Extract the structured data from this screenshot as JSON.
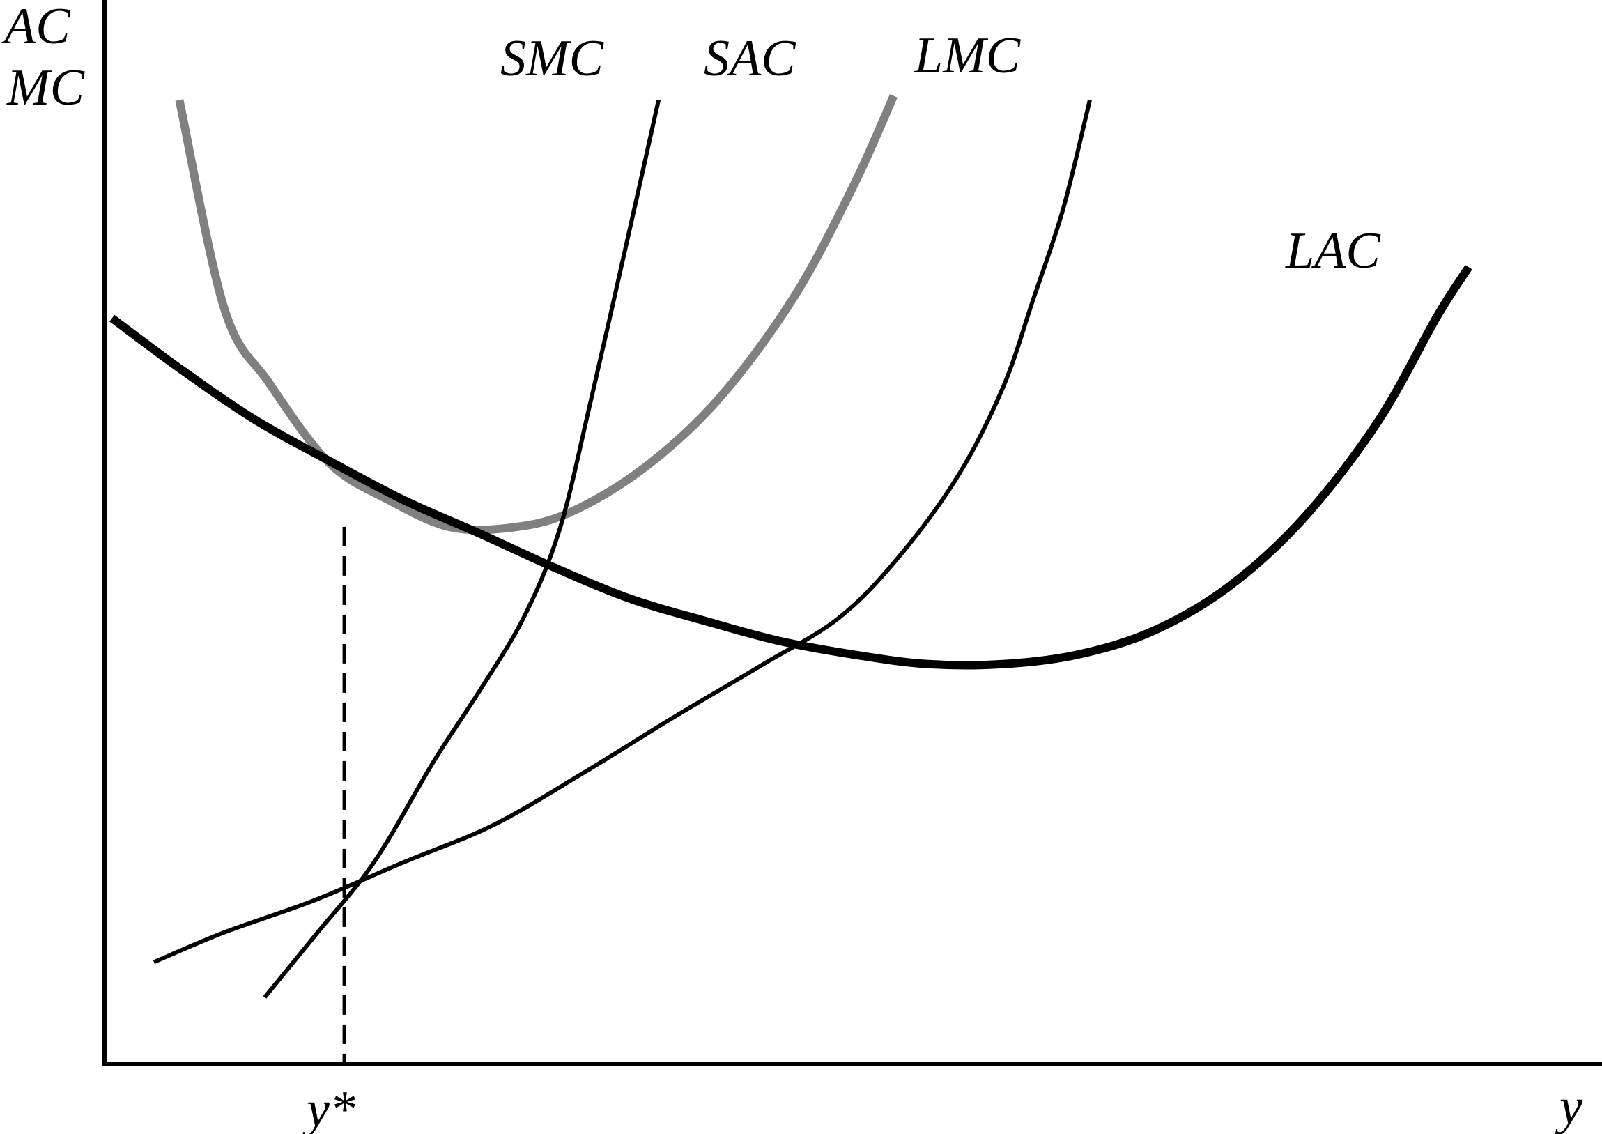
{
  "chart_data": {
    "type": "line",
    "title": "",
    "xlabel": "y",
    "ylabel_lines": [
      "AC",
      "MC"
    ],
    "x_tick_label": "y*",
    "xlim": [
      0,
      100
    ],
    "ylim": [
      0,
      100
    ],
    "grid": false,
    "legend": "none",
    "series": [
      {
        "name": "SAC",
        "color": "#808080",
        "points": [
          [
            5,
            90.6
          ],
          [
            8,
            71
          ],
          [
            11,
            64
          ],
          [
            15,
            56.5
          ],
          [
            19,
            53
          ],
          [
            23,
            50.5
          ],
          [
            27,
            50.4
          ],
          [
            31,
            51.8
          ],
          [
            36,
            56
          ],
          [
            41,
            62.5
          ],
          [
            46,
            72
          ],
          [
            50,
            82.5
          ],
          [
            52.7,
            91
          ]
        ]
      },
      {
        "name": "SMC",
        "color": "#000000",
        "points": [
          [
            10.7,
            6.3
          ],
          [
            14,
            12
          ],
          [
            18,
            19
          ],
          [
            22,
            28.5
          ],
          [
            25,
            35
          ],
          [
            28,
            42
          ],
          [
            30.4,
            50.3
          ],
          [
            32.5,
            62.5
          ],
          [
            35,
            78
          ],
          [
            37,
            90.6
          ]
        ]
      },
      {
        "name": "LMC",
        "color": "#000000",
        "points": [
          [
            3.3,
            9.6
          ],
          [
            8,
            12.4
          ],
          [
            14,
            15.4
          ],
          [
            20,
            19
          ],
          [
            26,
            22.5
          ],
          [
            32,
            27.4
          ],
          [
            38,
            32.6
          ],
          [
            44,
            37.6
          ],
          [
            49,
            41.9
          ],
          [
            53,
            47.6
          ],
          [
            57,
            55.3
          ],
          [
            60,
            63.6
          ],
          [
            62,
            71.8
          ],
          [
            64,
            80.3
          ],
          [
            65.8,
            90.6
          ]
        ]
      },
      {
        "name": "LAC",
        "color": "#000000",
        "points": [
          [
            0.5,
            70.1
          ],
          [
            5,
            65.4
          ],
          [
            10,
            60.6
          ],
          [
            15,
            56.7
          ],
          [
            20,
            53
          ],
          [
            25,
            49.9
          ],
          [
            30,
            46.7
          ],
          [
            35,
            43.8
          ],
          [
            40,
            41.7
          ],
          [
            45,
            39.8
          ],
          [
            50,
            38.5
          ],
          [
            55,
            37.6
          ],
          [
            60,
            37.6
          ],
          [
            65,
            38.5
          ],
          [
            70,
            40.7
          ],
          [
            75,
            44.8
          ],
          [
            80,
            51.2
          ],
          [
            85,
            60.3
          ],
          [
            89,
            70.3
          ],
          [
            91.1,
            74.9
          ]
        ]
      }
    ],
    "annotations": [
      {
        "type": "vline",
        "x": 16,
        "y_top": 50.5,
        "label": "y*",
        "style": "dashed"
      }
    ]
  }
}
